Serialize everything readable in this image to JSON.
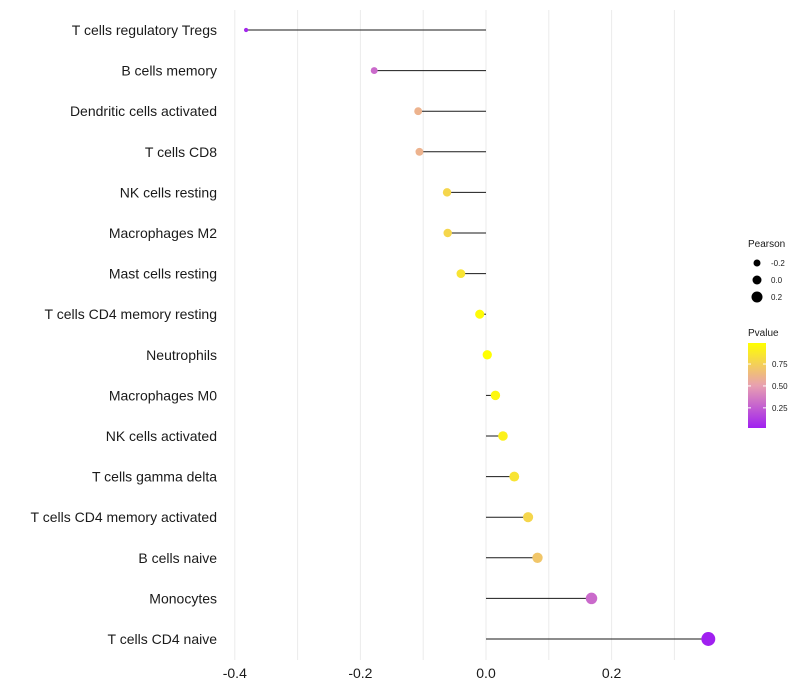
{
  "chart_data": {
    "type": "lollipop",
    "title": "",
    "xlabel": "",
    "ylabel": "",
    "xlim": [
      -0.4,
      0.35
    ],
    "x_ticks": [
      -0.4,
      -0.2,
      0.0,
      0.2
    ],
    "x_tick_labels": [
      "-0.4",
      "-0.2",
      "0.0",
      "0.2"
    ],
    "grid": true,
    "categories": [
      "T cells regulatory  Tregs",
      "B cells memory",
      "Dendritic cells activated",
      "T cells CD8",
      "NK cells resting",
      "Macrophages M2",
      "Mast cells resting",
      "T cells CD4 memory resting",
      "Neutrophils",
      "Macrophages M0",
      "NK cells activated",
      "T cells gamma delta",
      "T cells CD4 memory activated",
      "B cells naive",
      "Monocytes",
      "T cells CD4 naive"
    ],
    "pearson": [
      -0.382,
      -0.178,
      -0.108,
      -0.106,
      -0.062,
      -0.061,
      -0.04,
      -0.01,
      0.002,
      0.015,
      0.027,
      0.045,
      0.067,
      0.082,
      0.168,
      0.354
    ],
    "pvalue": [
      0.05,
      0.3,
      0.6,
      0.6,
      0.78,
      0.78,
      0.85,
      0.97,
      0.99,
      0.95,
      0.92,
      0.85,
      0.78,
      0.7,
      0.3,
      0.02
    ],
    "legend": {
      "size_title": "Pearson",
      "size_items": [
        {
          "label": "-0.2",
          "value": -0.2
        },
        {
          "label": "0.0",
          "value": 0.0
        },
        {
          "label": "0.2",
          "value": 0.2
        }
      ],
      "color_title": "Pvalue",
      "color_ticks": [
        {
          "label": "0.75",
          "value": 0.75
        },
        {
          "label": "0.50",
          "value": 0.5
        },
        {
          "label": "0.25",
          "value": 0.25
        }
      ],
      "color_range": [
        0.02,
        0.99
      ],
      "color_low": "#a020f0",
      "color_mid": "#e8a0b0",
      "color_high": "#ffff00",
      "placement": "right"
    }
  }
}
